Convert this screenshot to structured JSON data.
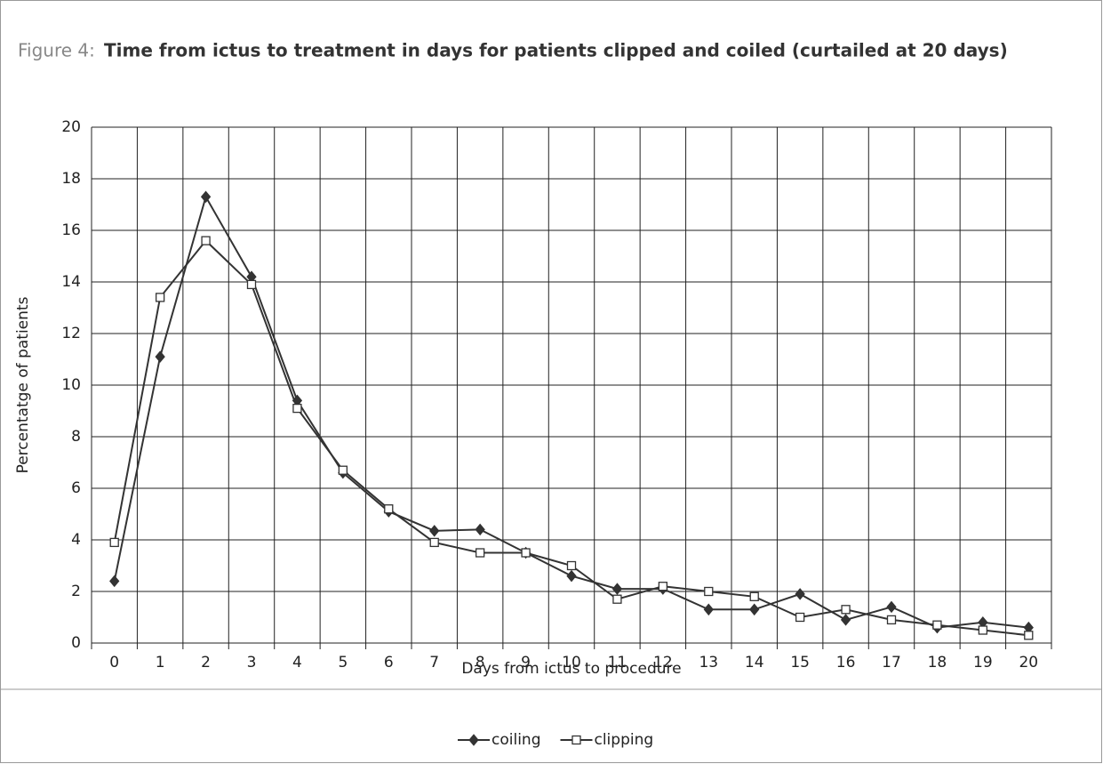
{
  "chart_data": {
    "type": "line",
    "figure_label": "Figure 4:",
    "title": "Time from ictus to treatment in days for patients clipped and coiled (curtailed at 20 days)",
    "x_label": "Days from ictus to procedure",
    "y_label": "Percentatge of patients",
    "categories": [
      "0",
      "1",
      "2",
      "3",
      "4",
      "5",
      "6",
      "7",
      "8",
      "9",
      "10",
      "11",
      "12",
      "13",
      "14",
      "15",
      "16",
      "17",
      "18",
      "19",
      "20"
    ],
    "series": [
      {
        "name": "coiling",
        "color": "#333333",
        "marker": "diamond",
        "values": [
          2.4,
          11.1,
          17.3,
          14.2,
          9.4,
          6.6,
          5.1,
          4.35,
          4.4,
          3.5,
          2.6,
          2.1,
          2.1,
          1.3,
          1.3,
          1.9,
          0.9,
          1.4,
          0.6,
          0.8,
          0.6
        ]
      },
      {
        "name": "clipping",
        "color": "#333333",
        "marker": "square",
        "values": [
          3.9,
          13.4,
          15.6,
          13.9,
          9.1,
          6.7,
          5.2,
          3.9,
          3.5,
          3.5,
          3.0,
          1.7,
          2.2,
          2.0,
          1.8,
          1.0,
          1.3,
          0.9,
          0.7,
          0.5,
          0.3
        ]
      }
    ],
    "ylim": [
      0,
      20
    ],
    "yticks": [
      0,
      2,
      4,
      6,
      8,
      10,
      12,
      14,
      16,
      18,
      20
    ],
    "grid": true,
    "legend": "bottom"
  }
}
